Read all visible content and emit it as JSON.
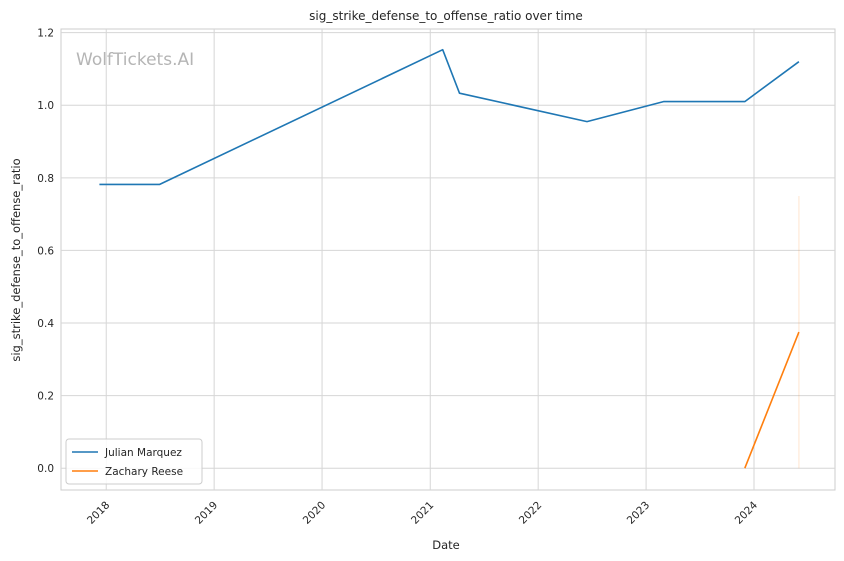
{
  "watermark": "WolfTickets.AI",
  "chart_data": {
    "type": "line",
    "title": "sig_strike_defense_to_offense_ratio over time",
    "xlabel": "Date",
    "ylabel": "sig_strike_defense_to_offense_ratio",
    "xlim": [
      "2017-08-01",
      "2024-10-01"
    ],
    "ylim": [
      -0.06,
      1.21
    ],
    "yticks": [
      0.0,
      0.2,
      0.4,
      0.6,
      0.8,
      1.0,
      1.2
    ],
    "ytick_labels": [
      "0.0",
      "0.2",
      "0.4",
      "0.6",
      "0.8",
      "1.0",
      "1.2"
    ],
    "xticks": [
      "2018-01-01",
      "2019-01-01",
      "2020-01-01",
      "2021-01-01",
      "2022-01-01",
      "2023-01-01",
      "2024-01-01"
    ],
    "xtick_labels": [
      "2018",
      "2019",
      "2020",
      "2021",
      "2022",
      "2023",
      "2024"
    ],
    "grid": true,
    "legend": "lower-left",
    "series": [
      {
        "name": "Julian Marquez",
        "color": "#1f77b4",
        "points": [
          {
            "x": "2017-12-09",
            "y": 0.782
          },
          {
            "x": "2018-07-01",
            "y": 0.782
          },
          {
            "x": "2021-02-12",
            "y": 1.153
          },
          {
            "x": "2021-04-10",
            "y": 1.033
          },
          {
            "x": "2022-06-15",
            "y": 0.955
          },
          {
            "x": "2023-03-01",
            "y": 1.01
          },
          {
            "x": "2023-12-01",
            "y": 1.01
          },
          {
            "x": "2024-06-01",
            "y": 1.12
          }
        ]
      },
      {
        "name": "Zachary Reese",
        "color": "#ff7f0e",
        "points": [
          {
            "x": "2023-12-01",
            "y": 0.0
          },
          {
            "x": "2024-06-01",
            "y": 0.375
          }
        ],
        "band": {
          "x": "2024-06-01",
          "low": 0.0,
          "high": 0.75
        }
      }
    ]
  }
}
